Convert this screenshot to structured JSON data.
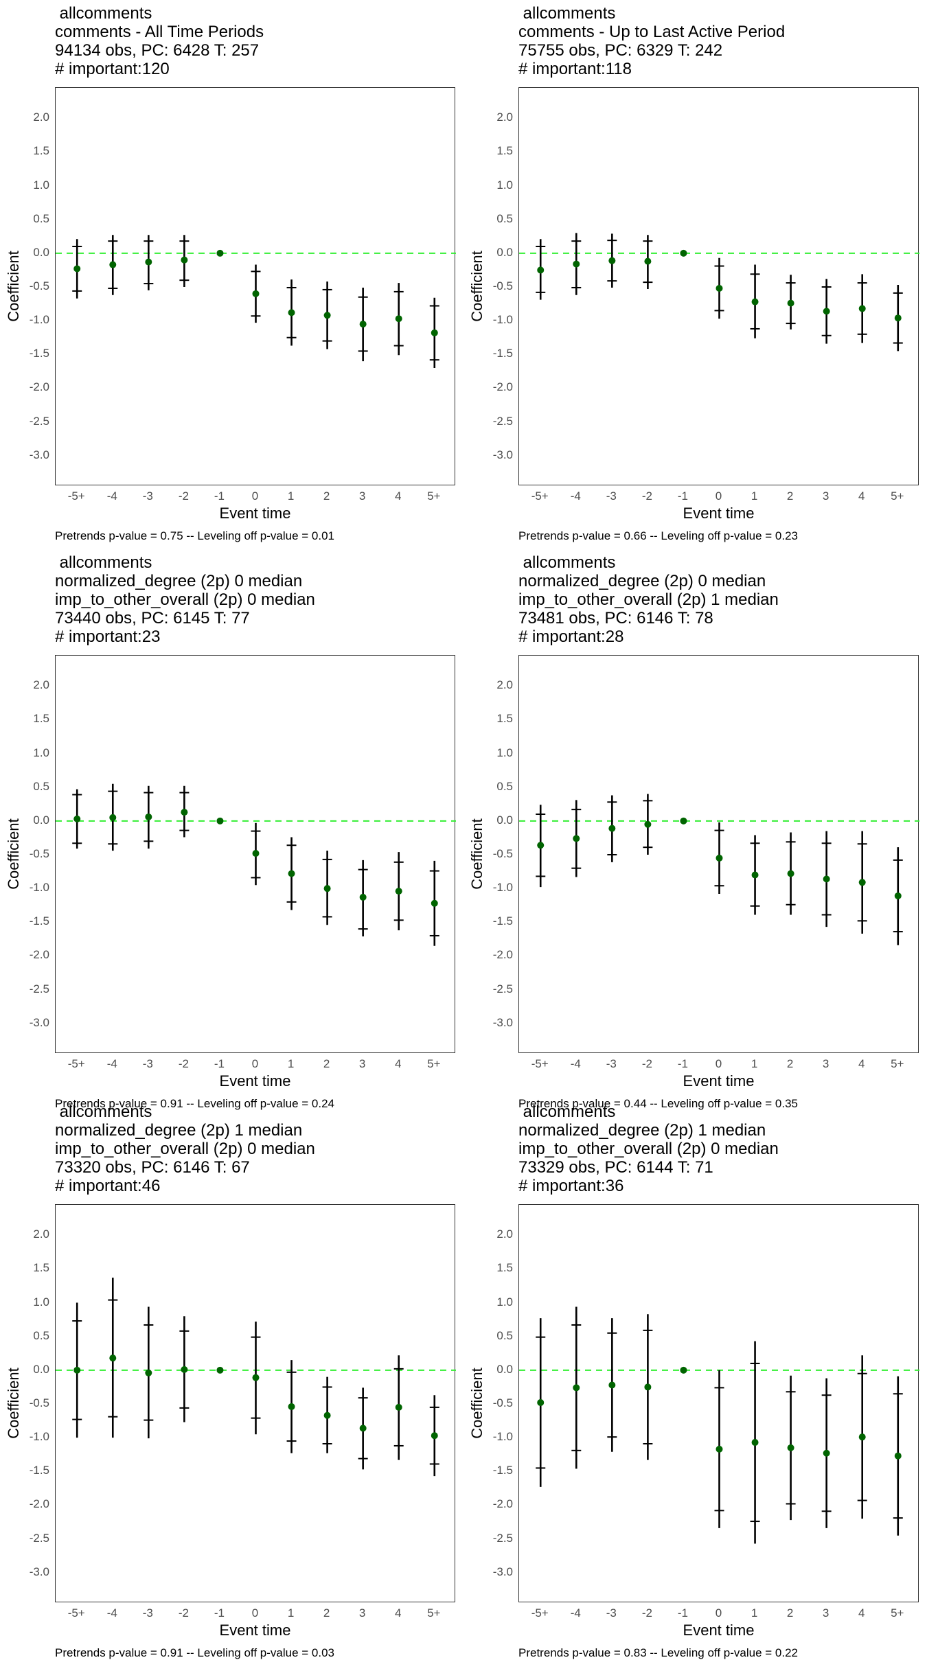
{
  "chart_data": [
    {
      "type": "scatter",
      "title_lines": [
        " allcomments",
        "comments - All Time Periods",
        "94134 obs, PC: 6428 T: 257",
        "# important:120"
      ],
      "xlabel": "Event time",
      "ylabel": "Coefficient",
      "categories": [
        "-5+",
        "-4",
        "-3",
        "-2",
        "-1",
        "0",
        "1",
        "2",
        "3",
        "4",
        "5+"
      ],
      "yticks": [
        2.0,
        1.5,
        1.0,
        0.5,
        0.0,
        -0.5,
        -1.0,
        -1.5,
        -2.0,
        -2.5,
        -3.0
      ],
      "ytick_labels": [
        "2.0",
        "1.5",
        "1.0",
        "0.5",
        "0.0",
        "-0.5",
        "-1.0",
        "-1.5",
        "-2.0",
        "-2.5",
        "-3.0"
      ],
      "ylim": [
        -3.45,
        2.45
      ],
      "reference_line": 0.0,
      "estimate": [
        -0.23,
        -0.17,
        -0.13,
        -0.1,
        0.0,
        -0.6,
        -0.88,
        -0.92,
        -1.05,
        -0.97,
        -1.18
      ],
      "ci90_low": [
        -0.56,
        -0.52,
        -0.45,
        -0.4,
        0.0,
        -0.93,
        -1.25,
        -1.3,
        -1.45,
        -1.37,
        -1.58
      ],
      "ci90_high": [
        0.1,
        0.18,
        0.18,
        0.18,
        0.0,
        -0.27,
        -0.51,
        -0.54,
        -0.65,
        -0.57,
        -0.78
      ],
      "ci95_low": [
        -0.67,
        -0.62,
        -0.55,
        -0.5,
        0.0,
        -1.03,
        -1.37,
        -1.42,
        -1.6,
        -1.51,
        -1.7
      ],
      "ci95_high": [
        0.21,
        0.27,
        0.27,
        0.27,
        0.0,
        -0.17,
        -0.39,
        -0.42,
        -0.51,
        -0.44,
        -0.66
      ],
      "caption": "Pretrends p-value = 0.75 -- Leveling off p-value = 0.01"
    },
    {
      "type": "scatter",
      "title_lines": [
        " allcomments",
        "comments - Up to Last Active Period",
        "75755 obs, PC: 6329 T: 242",
        "# important:118"
      ],
      "xlabel": "Event time",
      "ylabel": "Coefficient",
      "categories": [
        "-5+",
        "-4",
        "-3",
        "-2",
        "-1",
        "0",
        "1",
        "2",
        "3",
        "4",
        "5+"
      ],
      "yticks": [
        2.0,
        1.5,
        1.0,
        0.5,
        0.0,
        -0.5,
        -1.0,
        -1.5,
        -2.0,
        -2.5,
        -3.0
      ],
      "ytick_labels": [
        "2.0",
        "1.5",
        "1.0",
        "0.5",
        "0.0",
        "-0.5",
        "-1.0",
        "-1.5",
        "-2.0",
        "-2.5",
        "-3.0"
      ],
      "ylim": [
        -3.45,
        2.45
      ],
      "reference_line": 0.0,
      "estimate": [
        -0.25,
        -0.16,
        -0.11,
        -0.12,
        0.0,
        -0.52,
        -0.72,
        -0.74,
        -0.86,
        -0.82,
        -0.96
      ],
      "ci90_low": [
        -0.58,
        -0.51,
        -0.41,
        -0.43,
        0.0,
        -0.85,
        -1.12,
        -1.04,
        -1.22,
        -1.2,
        -1.33
      ],
      "ci90_high": [
        0.1,
        0.18,
        0.19,
        0.18,
        0.0,
        -0.19,
        -0.31,
        -0.44,
        -0.5,
        -0.44,
        -0.59
      ],
      "ci95_low": [
        -0.69,
        -0.62,
        -0.51,
        -0.53,
        0.0,
        -0.97,
        -1.26,
        -1.13,
        -1.34,
        -1.33,
        -1.45
      ],
      "ci95_high": [
        0.21,
        0.3,
        0.29,
        0.27,
        0.0,
        -0.07,
        -0.17,
        -0.32,
        -0.38,
        -0.31,
        -0.47
      ],
      "caption": "Pretrends p-value = 0.66 -- Leveling off p-value = 0.23"
    },
    {
      "type": "scatter",
      "title_lines": [
        " allcomments",
        "normalized_degree (2p) 0 median",
        "imp_to_other_overall (2p) 0 median",
        "73440 obs, PC: 6145 T: 77",
        "# important:23"
      ],
      "xlabel": "Event time",
      "ylabel": "Coefficient",
      "categories": [
        "-5+",
        "-4",
        "-3",
        "-2",
        "-1",
        "0",
        "1",
        "2",
        "3",
        "4",
        "5+"
      ],
      "yticks": [
        2.0,
        1.5,
        1.0,
        0.5,
        0.0,
        -0.5,
        -1.0,
        -1.5,
        -2.0,
        -2.5,
        -3.0
      ],
      "ytick_labels": [
        "2.0",
        "1.5",
        "1.0",
        "0.5",
        "0.0",
        "-0.5",
        "-1.0",
        "-1.5",
        "-2.0",
        "-2.5",
        "-3.0"
      ],
      "ylim": [
        -3.45,
        2.45
      ],
      "reference_line": 0.0,
      "estimate": [
        0.03,
        0.05,
        0.06,
        0.13,
        0.0,
        -0.48,
        -0.78,
        -1.0,
        -1.13,
        -1.04,
        -1.22
      ],
      "ci90_low": [
        -0.33,
        -0.34,
        -0.3,
        -0.14,
        0.0,
        -0.84,
        -1.2,
        -1.42,
        -1.6,
        -1.47,
        -1.7
      ],
      "ci90_high": [
        0.39,
        0.44,
        0.42,
        0.42,
        0.0,
        -0.15,
        -0.36,
        -0.57,
        -0.72,
        -0.61,
        -0.74
      ],
      "ci95_low": [
        -0.41,
        -0.44,
        -0.41,
        -0.24,
        0.0,
        -0.95,
        -1.32,
        -1.54,
        -1.71,
        -1.62,
        -1.85
      ],
      "ci95_high": [
        0.47,
        0.55,
        0.52,
        0.52,
        0.0,
        -0.03,
        -0.24,
        -0.44,
        -0.58,
        -0.46,
        -0.59
      ],
      "caption": "Pretrends p-value = 0.91 -- Leveling off p-value = 0.24"
    },
    {
      "type": "scatter",
      "title_lines": [
        " allcomments",
        "normalized_degree (2p) 0 median",
        "imp_to_other_overall (2p) 1 median",
        "73481 obs, PC: 6146 T: 78",
        "# important:28"
      ],
      "xlabel": "Event time",
      "ylabel": "Coefficient",
      "categories": [
        "-5+",
        "-4",
        "-3",
        "-2",
        "-1",
        "0",
        "1",
        "2",
        "3",
        "4",
        "5+"
      ],
      "yticks": [
        2.0,
        1.5,
        1.0,
        0.5,
        0.0,
        -0.5,
        -1.0,
        -1.5,
        -2.0,
        -2.5,
        -3.0
      ],
      "ytick_labels": [
        "2.0",
        "1.5",
        "1.0",
        "0.5",
        "0.0",
        "-0.5",
        "-1.0",
        "-1.5",
        "-2.0",
        "-2.5",
        "-3.0"
      ],
      "ylim": [
        -3.45,
        2.45
      ],
      "reference_line": 0.0,
      "estimate": [
        -0.36,
        -0.26,
        -0.11,
        -0.05,
        0.0,
        -0.55,
        -0.8,
        -0.78,
        -0.86,
        -0.91,
        -1.11
      ],
      "ci90_low": [
        -0.82,
        -0.7,
        -0.5,
        -0.39,
        0.0,
        -0.96,
        -1.26,
        -1.24,
        -1.39,
        -1.48,
        -1.64
      ],
      "ci90_high": [
        0.1,
        0.17,
        0.28,
        0.3,
        0.0,
        -0.14,
        -0.33,
        -0.31,
        -0.33,
        -0.34,
        -0.58
      ],
      "ci95_low": [
        -0.98,
        -0.83,
        -0.61,
        -0.5,
        0.0,
        -1.08,
        -1.39,
        -1.39,
        -1.57,
        -1.67,
        -1.84
      ],
      "ci95_high": [
        0.24,
        0.31,
        0.38,
        0.4,
        0.0,
        -0.02,
        -0.21,
        -0.17,
        -0.15,
        -0.15,
        -0.39
      ],
      "caption": "Pretrends p-value = 0.44 -- Leveling off p-value = 0.35"
    },
    {
      "type": "scatter",
      "title_lines": [
        " allcomments",
        "normalized_degree (2p) 1 median",
        "imp_to_other_overall (2p) 0 median",
        "73320 obs, PC: 6146 T: 67",
        "# important:46"
      ],
      "xlabel": "Event time",
      "ylabel": "Coefficient",
      "categories": [
        "-5+",
        "-4",
        "-3",
        "-2",
        "-1",
        "0",
        "1",
        "2",
        "3",
        "4",
        "5+"
      ],
      "yticks": [
        2.0,
        1.5,
        1.0,
        0.5,
        0.0,
        -0.5,
        -1.0,
        -1.5,
        -2.0,
        -2.5,
        -3.0
      ],
      "ytick_labels": [
        "2.0",
        "1.5",
        "1.0",
        "0.5",
        "0.0",
        "-0.5",
        "-1.0",
        "-1.5",
        "-2.0",
        "-2.5",
        "-3.0"
      ],
      "ylim": [
        -3.45,
        2.45
      ],
      "reference_line": 0.0,
      "estimate": [
        0.0,
        0.18,
        -0.04,
        0.01,
        0.0,
        -0.11,
        -0.54,
        -0.67,
        -0.86,
        -0.55,
        -0.97
      ],
      "ci90_low": [
        -0.73,
        -0.69,
        -0.74,
        -0.56,
        0.0,
        -0.71,
        -1.05,
        -1.09,
        -1.31,
        -1.12,
        -1.39
      ],
      "ci90_high": [
        0.73,
        1.04,
        0.67,
        0.58,
        0.0,
        0.49,
        -0.03,
        -0.25,
        -0.41,
        0.02,
        -0.55
      ],
      "ci95_low": [
        -1.0,
        -1.0,
        -1.01,
        -0.77,
        0.0,
        -0.95,
        -1.23,
        -1.23,
        -1.47,
        -1.33,
        -1.57
      ],
      "ci95_high": [
        1.0,
        1.37,
        0.94,
        0.8,
        0.0,
        0.72,
        0.15,
        -0.1,
        -0.26,
        0.22,
        -0.37
      ],
      "caption": "Pretrends p-value = 0.91 -- Leveling off p-value = 0.03"
    },
    {
      "type": "scatter",
      "title_lines": [
        " allcomments",
        "normalized_degree (2p) 1 median",
        "imp_to_other_overall (2p) 0 median",
        "73329 obs, PC: 6144 T: 71",
        "# important:36"
      ],
      "xlabel": "Event time",
      "ylabel": "Coefficient",
      "categories": [
        "-5+",
        "-4",
        "-3",
        "-2",
        "-1",
        "0",
        "1",
        "2",
        "3",
        "4",
        "5+"
      ],
      "yticks": [
        2.0,
        1.5,
        1.0,
        0.5,
        0.0,
        -0.5,
        -1.0,
        -1.5,
        -2.0,
        -2.5,
        -3.0
      ],
      "ytick_labels": [
        "2.0",
        "1.5",
        "1.0",
        "0.5",
        "0.0",
        "-0.5",
        "-1.0",
        "-1.5",
        "-2.0",
        "-2.5",
        "-3.0"
      ],
      "ylim": [
        -3.45,
        2.45
      ],
      "reference_line": 0.0,
      "estimate": [
        -0.48,
        -0.26,
        -0.22,
        -0.25,
        0.0,
        -1.17,
        -1.07,
        -1.15,
        -1.23,
        -0.99,
        -1.27
      ],
      "ci90_low": [
        -1.45,
        -1.19,
        -0.99,
        -1.09,
        0.0,
        -2.08,
        -2.24,
        -1.98,
        -2.09,
        -1.93,
        -2.19
      ],
      "ci90_high": [
        0.49,
        0.67,
        0.55,
        0.59,
        0.0,
        -0.26,
        0.1,
        -0.32,
        -0.37,
        -0.05,
        -0.35
      ],
      "ci95_low": [
        -1.73,
        -1.46,
        -1.21,
        -1.33,
        0.0,
        -2.34,
        -2.57,
        -2.22,
        -2.34,
        -2.2,
        -2.45
      ],
      "ci95_high": [
        0.77,
        0.94,
        0.77,
        0.83,
        0.0,
        0.0,
        0.43,
        -0.08,
        -0.12,
        0.22,
        -0.09
      ],
      "caption": "Pretrends p-value = 0.83 -- Leveling off p-value = 0.22"
    }
  ],
  "colors": {
    "point": "#006400",
    "errorbar": "#000000",
    "reference_line": "#33ee33",
    "panel_border": "#333333",
    "tick_text": "#4d4d4d"
  }
}
